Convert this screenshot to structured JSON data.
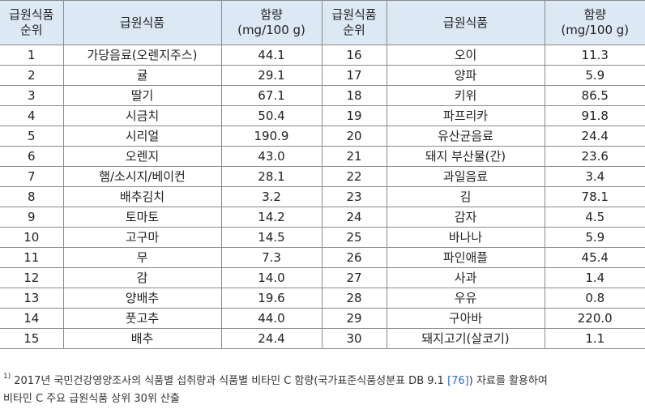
{
  "headers": {
    "rank_l1": "급원식품",
    "rank_l2": "순위",
    "food": "급원식품",
    "content_l1": "함량",
    "content_l2": "(mg/100 g)"
  },
  "rows_left": [
    {
      "rank": "1",
      "food": "가당음료(오렌지주스)",
      "value": "44.1"
    },
    {
      "rank": "2",
      "food": "귤",
      "value": "29.1"
    },
    {
      "rank": "3",
      "food": "딸기",
      "value": "67.1"
    },
    {
      "rank": "4",
      "food": "시금치",
      "value": "50.4"
    },
    {
      "rank": "5",
      "food": "시리얼",
      "value": "190.9"
    },
    {
      "rank": "6",
      "food": "오렌지",
      "value": "43.0"
    },
    {
      "rank": "7",
      "food": "햄/소시지/베이컨",
      "value": "28.1"
    },
    {
      "rank": "8",
      "food": "배추김치",
      "value": "3.2"
    },
    {
      "rank": "9",
      "food": "토마토",
      "value": "14.2"
    },
    {
      "rank": "10",
      "food": "고구마",
      "value": "14.5"
    },
    {
      "rank": "11",
      "food": "무",
      "value": "7.3"
    },
    {
      "rank": "12",
      "food": "감",
      "value": "14.0"
    },
    {
      "rank": "13",
      "food": "양배추",
      "value": "19.6"
    },
    {
      "rank": "14",
      "food": "풋고추",
      "value": "44.0"
    },
    {
      "rank": "15",
      "food": "배추",
      "value": "24.4"
    }
  ],
  "rows_right": [
    {
      "rank": "16",
      "food": "오이",
      "value": "11.3"
    },
    {
      "rank": "17",
      "food": "양파",
      "value": "5.9"
    },
    {
      "rank": "18",
      "food": "키위",
      "value": "86.5"
    },
    {
      "rank": "19",
      "food": "파프리카",
      "value": "91.8"
    },
    {
      "rank": "20",
      "food": "유산균음료",
      "value": "24.4"
    },
    {
      "rank": "21",
      "food": "돼지 부산물(간)",
      "value": "23.6"
    },
    {
      "rank": "22",
      "food": "과일음료",
      "value": "3.4"
    },
    {
      "rank": "23",
      "food": "김",
      "value": "78.1"
    },
    {
      "rank": "24",
      "food": "감자",
      "value": "4.5"
    },
    {
      "rank": "25",
      "food": "바나나",
      "value": "5.9"
    },
    {
      "rank": "26",
      "food": "파인애플",
      "value": "45.4"
    },
    {
      "rank": "27",
      "food": "사과",
      "value": "1.4"
    },
    {
      "rank": "28",
      "food": "우유",
      "value": "0.8"
    },
    {
      "rank": "29",
      "food": "구아바",
      "value": "220.0"
    },
    {
      "rank": "30",
      "food": "돼지고기(살코기)",
      "value": "1.1"
    }
  ],
  "footnote": {
    "marker": "1)",
    "text_a": "2017년 국민건강영양조사의 식품별 섭취량과 식품별 비타민 C 함량(국가표준식품성분표 DB 9.1 ",
    "ref": "[76]",
    "text_b": ") 자료를 활용하여",
    "line2": "비타민 C 주요 급원식품 상위 30위 산출"
  }
}
